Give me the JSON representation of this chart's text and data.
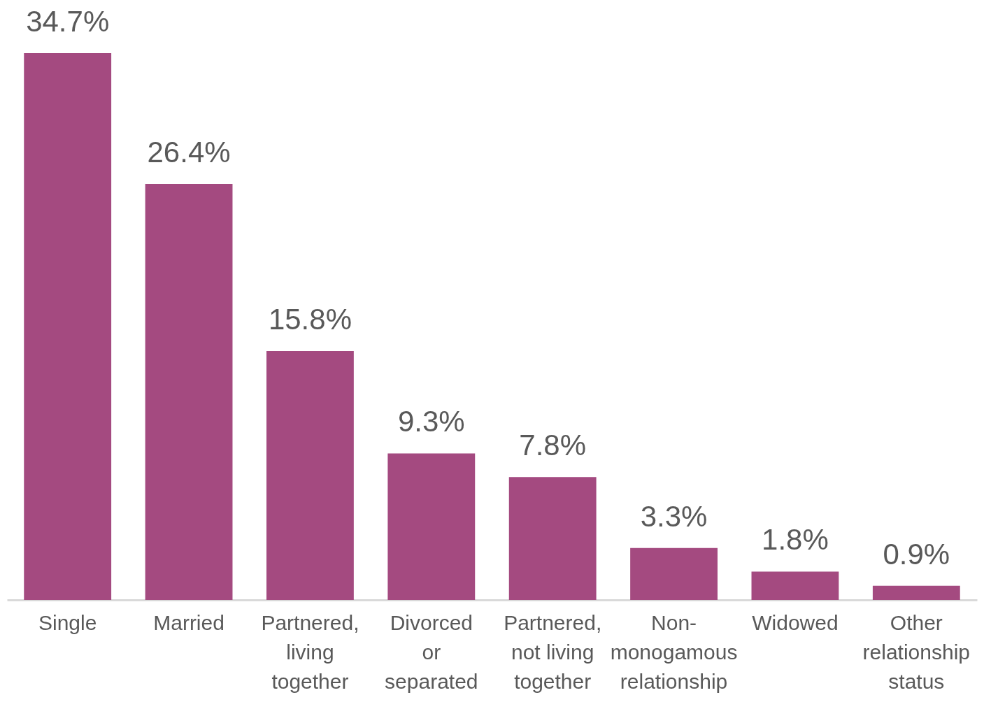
{
  "chart_data": {
    "type": "bar",
    "categories": [
      "Single",
      "Married",
      "Partnered, living together",
      "Divorced or separated",
      "Partnered, not living together",
      "Non-monogamous relationship",
      "Widowed",
      "Other relationship status"
    ],
    "values": [
      34.7,
      26.4,
      15.8,
      9.3,
      7.8,
      3.3,
      1.8,
      0.9
    ],
    "value_labels": [
      "34.7%",
      "26.4%",
      "15.8%",
      "9.3%",
      "7.8%",
      "3.3%",
      "1.8%",
      "0.9%"
    ],
    "color": "#a44a80",
    "tick_labels": "x"
  }
}
